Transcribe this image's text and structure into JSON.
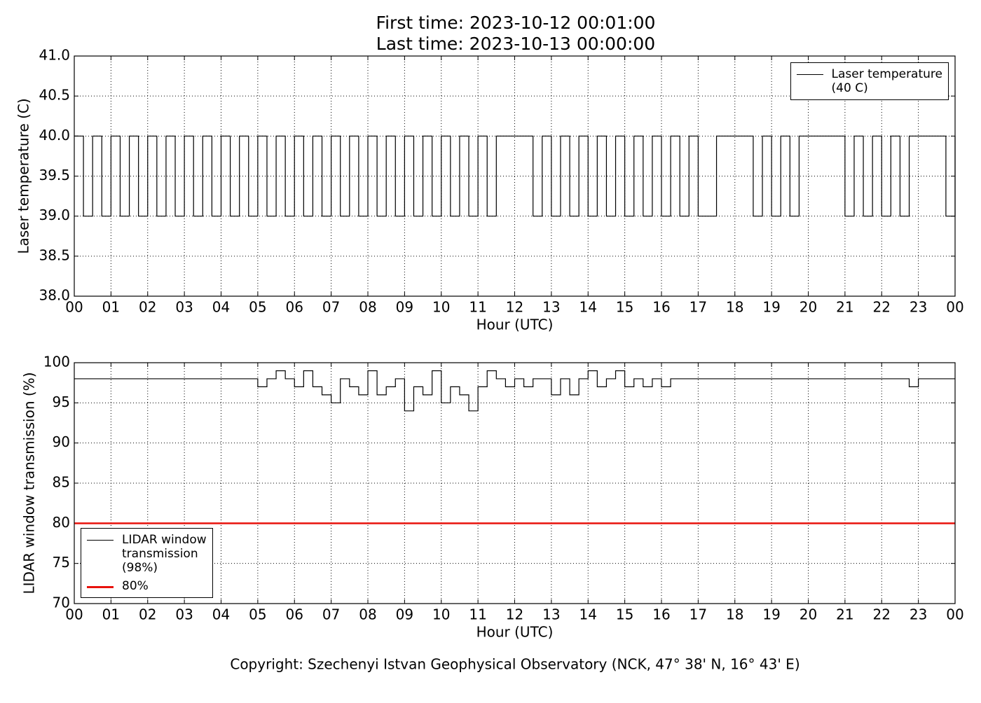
{
  "header": {
    "lines": [
      "First time: 2023-10-12 00:01:00",
      "Last time: 2023-10-13 00:00:00"
    ]
  },
  "footer": "Copyright: Szechenyi Istvan Geophysical Observatory (NCK, 47° 38' N, 16° 43' E)",
  "chart_data": [
    {
      "type": "line",
      "step": true,
      "grid": true,
      "legend": "upper right",
      "x_label": "Hour (UTC)",
      "y_label": "Laser temperature (C)",
      "xlim": [
        0,
        24
      ],
      "ylim": [
        38,
        41
      ],
      "xticks": [
        {
          "value": 0,
          "label": "00"
        },
        {
          "value": 1,
          "label": "01"
        },
        {
          "value": 2,
          "label": "02"
        },
        {
          "value": 3,
          "label": "03"
        },
        {
          "value": 4,
          "label": "04"
        },
        {
          "value": 5,
          "label": "05"
        },
        {
          "value": 6,
          "label": "06"
        },
        {
          "value": 7,
          "label": "07"
        },
        {
          "value": 8,
          "label": "08"
        },
        {
          "value": 9,
          "label": "09"
        },
        {
          "value": 10,
          "label": "10"
        },
        {
          "value": 11,
          "label": "11"
        },
        {
          "value": 12,
          "label": "12"
        },
        {
          "value": 13,
          "label": "13"
        },
        {
          "value": 14,
          "label": "14"
        },
        {
          "value": 15,
          "label": "15"
        },
        {
          "value": 16,
          "label": "16"
        },
        {
          "value": 17,
          "label": "17"
        },
        {
          "value": 18,
          "label": "18"
        },
        {
          "value": 19,
          "label": "19"
        },
        {
          "value": 20,
          "label": "20"
        },
        {
          "value": 21,
          "label": "21"
        },
        {
          "value": 22,
          "label": "22"
        },
        {
          "value": 23,
          "label": "23"
        },
        {
          "value": 24,
          "label": "00"
        }
      ],
      "yticks": [
        {
          "value": 38,
          "label": "38.0"
        },
        {
          "value": 38.5,
          "label": "38.5"
        },
        {
          "value": 39,
          "label": "39.0"
        },
        {
          "value": 39.5,
          "label": "39.5"
        },
        {
          "value": 40,
          "label": "40.0"
        },
        {
          "value": 40.5,
          "label": "40.5"
        },
        {
          "value": 41,
          "label": "41.0"
        }
      ],
      "x": [
        0,
        0.25,
        0.5,
        0.75,
        1,
        1.25,
        1.5,
        1.75,
        2,
        2.25,
        2.5,
        2.75,
        3,
        3.25,
        3.5,
        3.75,
        4,
        4.25,
        4.5,
        4.75,
        5,
        5.25,
        5.5,
        5.75,
        6,
        6.25,
        6.5,
        6.75,
        7,
        7.25,
        7.5,
        7.75,
        8,
        8.25,
        8.5,
        8.75,
        9,
        9.25,
        9.5,
        9.75,
        10,
        10.25,
        10.5,
        10.75,
        11,
        11.25,
        11.5,
        11.75,
        12,
        12.25,
        12.5,
        12.75,
        13,
        13.25,
        13.5,
        13.75,
        14,
        14.25,
        14.5,
        14.75,
        15,
        15.25,
        15.5,
        15.75,
        16,
        16.25,
        16.5,
        16.75,
        17,
        17.25,
        17.5,
        17.75,
        18,
        18.25,
        18.5,
        18.75,
        19,
        19.25,
        19.5,
        19.75,
        20,
        20.25,
        20.5,
        20.75,
        21,
        21.25,
        21.5,
        21.75,
        22,
        22.25,
        22.5,
        22.75,
        23,
        23.25,
        23.5,
        23.75,
        24
      ],
      "series": [
        {
          "name": "Laser temperature\n(40 C)",
          "color": "#000000",
          "values": [
            40,
            39,
            40,
            39,
            40,
            39,
            40,
            39,
            40,
            39,
            40,
            39,
            40,
            39,
            40,
            39,
            40,
            39,
            40,
            39,
            40,
            39,
            40,
            39,
            40,
            39,
            40,
            39,
            40,
            39,
            40,
            39,
            40,
            39,
            40,
            39,
            40,
            39,
            40,
            39,
            40,
            39,
            40,
            39,
            40,
            39,
            40,
            40,
            40,
            40,
            39,
            40,
            39,
            40,
            39,
            40,
            39,
            40,
            39,
            40,
            39,
            40,
            39,
            40,
            39,
            40,
            39,
            40,
            39,
            39,
            40,
            40,
            40,
            40,
            39,
            40,
            39,
            40,
            39,
            40,
            40,
            40,
            40,
            40,
            39,
            40,
            39,
            40,
            39,
            40,
            39,
            40,
            40,
            40,
            40,
            39,
            40
          ]
        }
      ]
    },
    {
      "type": "line",
      "step": true,
      "grid": true,
      "legend": "lower left",
      "x_label": "Hour (UTC)",
      "y_label": "LIDAR window transmission (%)",
      "xlim": [
        0,
        24
      ],
      "ylim": [
        70,
        100
      ],
      "xticks": [
        {
          "value": 0,
          "label": "00"
        },
        {
          "value": 1,
          "label": "01"
        },
        {
          "value": 2,
          "label": "02"
        },
        {
          "value": 3,
          "label": "03"
        },
        {
          "value": 4,
          "label": "04"
        },
        {
          "value": 5,
          "label": "05"
        },
        {
          "value": 6,
          "label": "06"
        },
        {
          "value": 7,
          "label": "07"
        },
        {
          "value": 8,
          "label": "08"
        },
        {
          "value": 9,
          "label": "09"
        },
        {
          "value": 10,
          "label": "10"
        },
        {
          "value": 11,
          "label": "11"
        },
        {
          "value": 12,
          "label": "12"
        },
        {
          "value": 13,
          "label": "13"
        },
        {
          "value": 14,
          "label": "14"
        },
        {
          "value": 15,
          "label": "15"
        },
        {
          "value": 16,
          "label": "16"
        },
        {
          "value": 17,
          "label": "17"
        },
        {
          "value": 18,
          "label": "18"
        },
        {
          "value": 19,
          "label": "19"
        },
        {
          "value": 20,
          "label": "20"
        },
        {
          "value": 21,
          "label": "21"
        },
        {
          "value": 22,
          "label": "22"
        },
        {
          "value": 23,
          "label": "23"
        },
        {
          "value": 24,
          "label": "00"
        }
      ],
      "yticks": [
        70,
        75,
        80,
        85,
        90,
        95,
        100
      ],
      "x": [
        0,
        0.25,
        0.5,
        0.75,
        1,
        1.25,
        1.5,
        1.75,
        2,
        2.25,
        2.5,
        2.75,
        3,
        3.25,
        3.5,
        3.75,
        4,
        4.25,
        4.5,
        4.75,
        5,
        5.25,
        5.5,
        5.75,
        6,
        6.25,
        6.5,
        6.75,
        7,
        7.25,
        7.5,
        7.75,
        8,
        8.25,
        8.5,
        8.75,
        9,
        9.25,
        9.5,
        9.75,
        10,
        10.25,
        10.5,
        10.75,
        11,
        11.25,
        11.5,
        11.75,
        12,
        12.25,
        12.5,
        12.75,
        13,
        13.25,
        13.5,
        13.75,
        14,
        14.25,
        14.5,
        14.75,
        15,
        15.25,
        15.5,
        15.75,
        16,
        16.25,
        16.5,
        16.75,
        17,
        17.25,
        17.5,
        17.75,
        18,
        18.25,
        18.5,
        18.75,
        19,
        19.25,
        19.5,
        19.75,
        20,
        20.25,
        20.5,
        20.75,
        21,
        21.25,
        21.5,
        21.75,
        22,
        22.25,
        22.5,
        22.75,
        23,
        23.25,
        23.5,
        23.75,
        24
      ],
      "series": [
        {
          "name": "LIDAR window\ntransmission\n(98%)",
          "color": "#000000",
          "values": [
            98,
            98,
            98,
            98,
            98,
            98,
            98,
            98,
            98,
            98,
            98,
            98,
            98,
            98,
            98,
            98,
            98,
            98,
            98,
            98,
            97,
            98,
            99,
            98,
            97,
            99,
            97,
            96,
            95,
            98,
            97,
            96,
            99,
            96,
            97,
            98,
            94,
            97,
            96,
            99,
            95,
            97,
            96,
            94,
            97,
            99,
            98,
            97,
            98,
            97,
            98,
            98,
            96,
            98,
            96,
            98,
            99,
            97,
            98,
            99,
            97,
            98,
            97,
            98,
            97,
            98,
            98,
            98,
            98,
            98,
            98,
            98,
            98,
            98,
            98,
            98,
            98,
            98,
            98,
            98,
            98,
            98,
            98,
            98,
            98,
            98,
            98,
            98,
            98,
            98,
            98,
            97,
            98,
            98,
            98,
            98,
            98
          ]
        },
        {
          "name": "80%",
          "color": "#e8120c",
          "x": [
            0,
            24
          ],
          "values": [
            80,
            80
          ]
        }
      ]
    }
  ]
}
